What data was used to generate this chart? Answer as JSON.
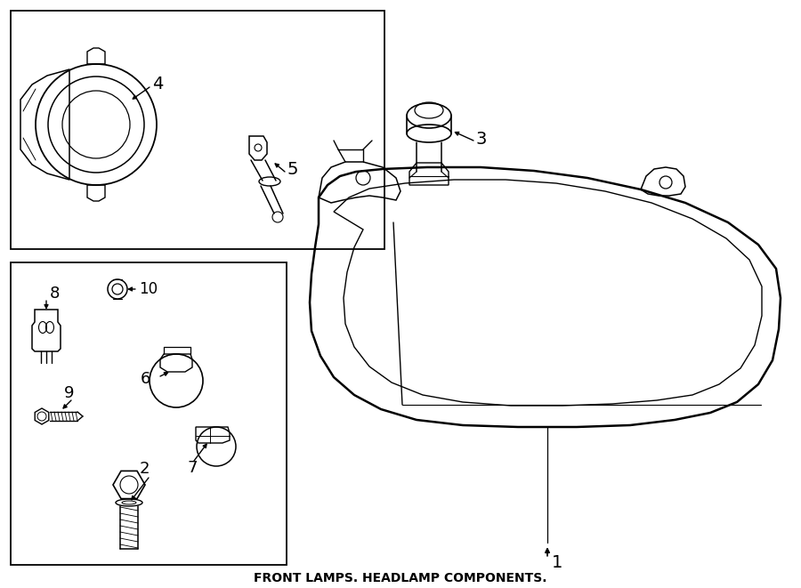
{
  "bg_color": "#ffffff",
  "line_color": "#000000",
  "title": "FRONT LAMPS. HEADLAMP COMPONENTS.",
  "fig_width": 9.0,
  "fig_height": 6.61,
  "dpi": 100
}
